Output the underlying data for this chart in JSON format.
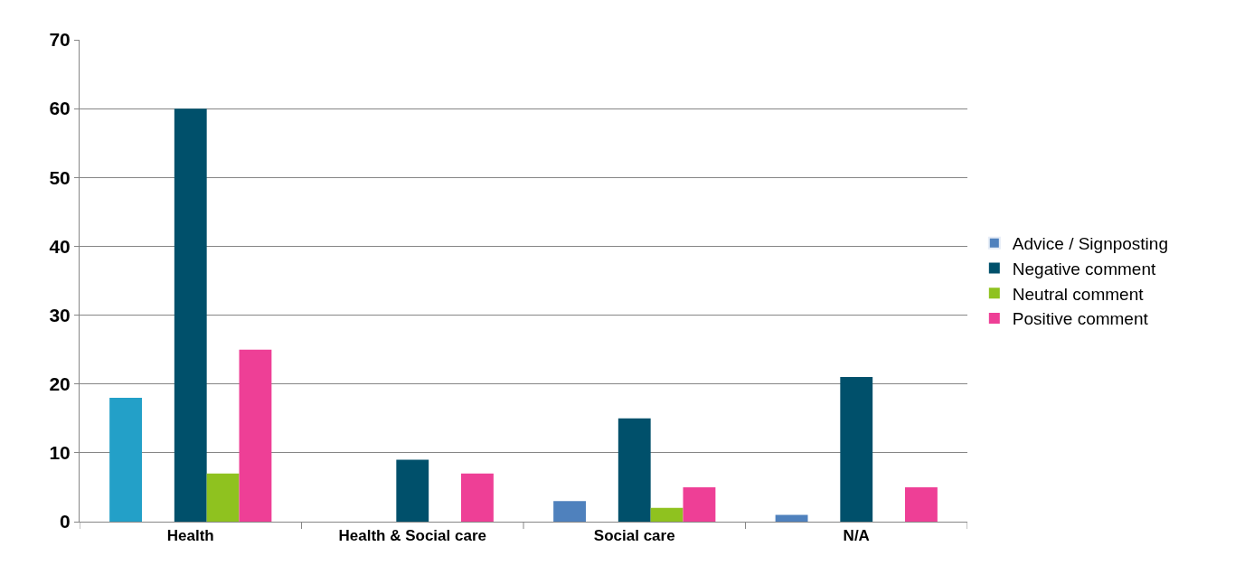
{
  "chart_data": {
    "type": "bar",
    "categories": [
      "Health",
      "Health & Social care",
      "Social care",
      "N/A"
    ],
    "series": [
      {
        "name": "Advice / Signposting",
        "color": "#4f81bd",
        "colors": [
          "#23a0c8",
          "#4f81bd",
          "#4f81bd",
          "#4f81bd"
        ],
        "values": [
          18,
          null,
          3,
          1
        ]
      },
      {
        "name": "Negative comment",
        "color": "#00506b",
        "values": [
          60,
          9,
          15,
          21
        ]
      },
      {
        "name": "Neutral comment",
        "color": "#8fc21f",
        "values": [
          7,
          null,
          2,
          null
        ]
      },
      {
        "name": "Positive comment",
        "color": "#ee3f96",
        "values": [
          25,
          7,
          5,
          5
        ]
      }
    ],
    "ylim": [
      0,
      70
    ],
    "yticks": [
      0,
      10,
      20,
      30,
      40,
      50,
      60,
      70
    ],
    "grid": "y",
    "legend": "right"
  }
}
